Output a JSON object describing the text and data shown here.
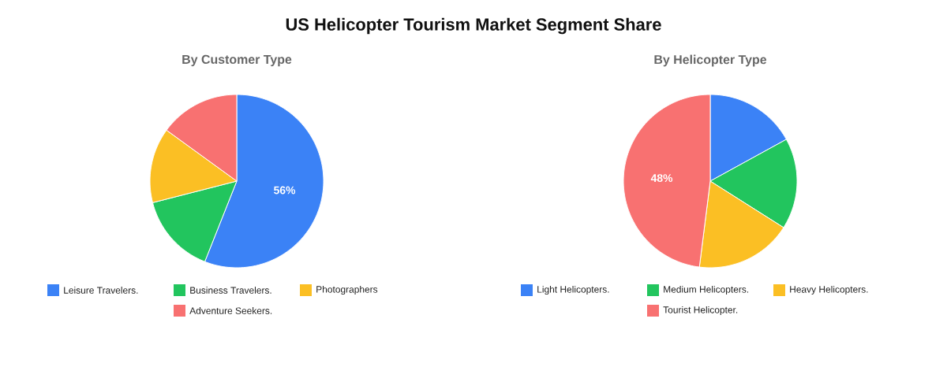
{
  "chart_data": [
    {
      "type": "pie",
      "title": "US Helicopter Tourism Market Segment Share",
      "subtitle": "By Customer Type",
      "categories": [
        "Leisure Travelers.",
        "Business Travelers.",
        "Photographers",
        "Adventure Seekers."
      ],
      "values": [
        56,
        15,
        14,
        15
      ],
      "colors": [
        "#3b82f6",
        "#22c55e",
        "#fbbf24",
        "#f87171"
      ],
      "value_labels": [
        "56%",
        null,
        null,
        null
      ],
      "legend": "bottom"
    },
    {
      "type": "pie",
      "subtitle": "By Helicopter Type",
      "categories": [
        "Light Helicopters.",
        "Medium Helicopters.",
        "Heavy Helicopters.",
        "Tourist Helicopter."
      ],
      "values": [
        17,
        17,
        18,
        48
      ],
      "colors": [
        "#3b82f6",
        "#22c55e",
        "#fbbf24",
        "#f87171"
      ],
      "value_labels": [
        null,
        null,
        null,
        "48%"
      ],
      "legend": "bottom"
    }
  ]
}
